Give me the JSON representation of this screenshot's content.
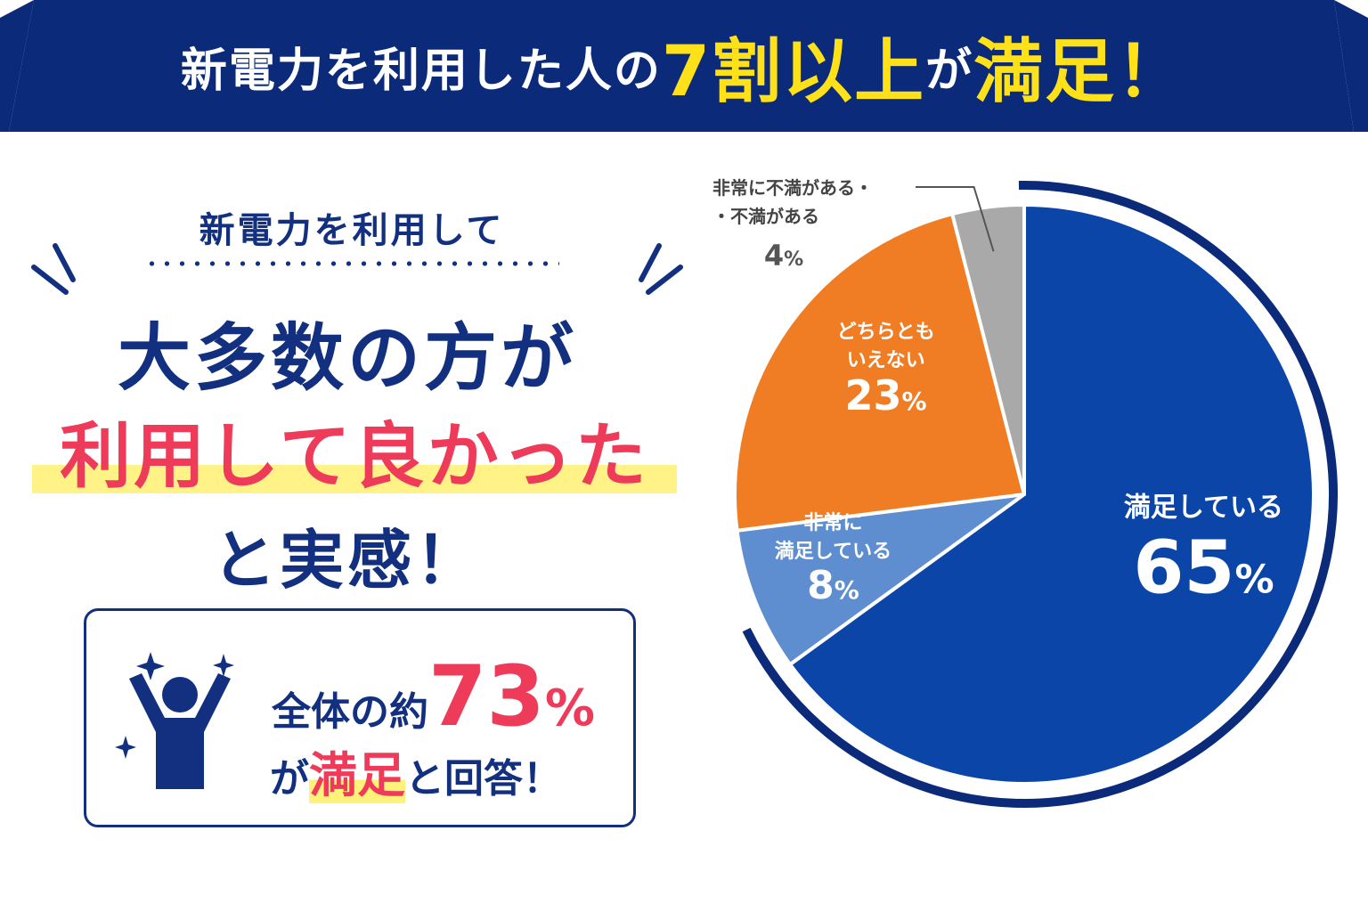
{
  "header": {
    "title_part1": "新電力を利用した人の",
    "title_highlight": "7割以上",
    "title_part2": "が",
    "title_highlight2": "満足！"
  },
  "left": {
    "lead": "新電力を利用して",
    "big_line1": "大多数の方が",
    "big_line2": "利用して良かった",
    "big_line3": "と実感！",
    "card": {
      "prefix": "全体の約",
      "number": "73",
      "percent": "%",
      "line2_pre": "が",
      "line2_highlight": "満足",
      "line2_post": "と回答！"
    }
  },
  "colors": {
    "navy": "#12307f",
    "banner": "#0b2a7a",
    "yellow": "#ffe11a",
    "pink": "#ee3b5a",
    "highlight": "#fff27a"
  },
  "chart_data": {
    "type": "pie",
    "categories": [
      "満足している",
      "非常に満足している",
      "どちらともいえない",
      "非常に不満がある・・不満がある"
    ],
    "values": [
      65,
      8,
      23,
      4
    ],
    "unit": "%",
    "colors": [
      "#0b45a8",
      "#5e8dd0",
      "#f07d24",
      "#a9a9a9"
    ],
    "labels": [
      {
        "lines": [
          "満足している"
        ],
        "value": "65",
        "pct": "%"
      },
      {
        "lines": [
          "非常に",
          "満足している"
        ],
        "value": "8",
        "pct": "%"
      },
      {
        "lines": [
          "どちらとも",
          "いえない"
        ],
        "value": "23",
        "pct": "%"
      },
      {
        "lines": [
          "非常に不満がある・",
          "・不満がある"
        ],
        "value": "4",
        "pct": "%"
      }
    ]
  }
}
